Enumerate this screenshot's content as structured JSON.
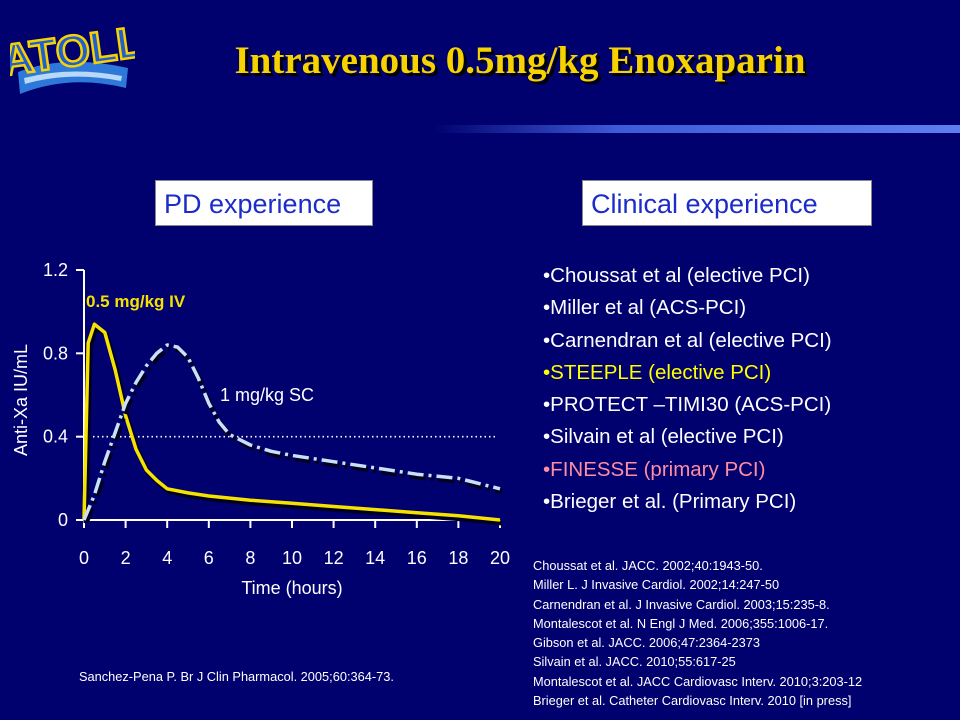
{
  "logo": {
    "text": "ATOLL"
  },
  "title": "Intravenous 0.5mg/kg Enoxaparin",
  "pd_box_label": "PD experience",
  "clinical_box_label": "Clinical experience",
  "chart_data": {
    "type": "line",
    "xlabel": "Time (hours)",
    "ylabel": "Anti-Xa IU/mL",
    "xlim": [
      0,
      20
    ],
    "ylim": [
      0,
      1.2
    ],
    "x_ticks": [
      "0",
      "2",
      "4",
      "6",
      "8",
      "10",
      "12",
      "14",
      "16",
      "18",
      "20"
    ],
    "y_ticks": [
      "0",
      "0.4",
      "0.8",
      "1.2"
    ],
    "reference_line_y": 0.4,
    "series": [
      {
        "name": "0.5 mg/kg IV",
        "color": "#f6e200",
        "style": "solid",
        "x": [
          0,
          0.2,
          0.5,
          1,
          1.5,
          2,
          2.5,
          3,
          3.5,
          4,
          5,
          6,
          8,
          10,
          12,
          14,
          16,
          18,
          20
        ],
        "y": [
          0,
          0.85,
          0.94,
          0.9,
          0.72,
          0.5,
          0.34,
          0.24,
          0.19,
          0.15,
          0.13,
          0.115,
          0.095,
          0.08,
          0.065,
          0.05,
          0.035,
          0.02,
          0.0
        ]
      },
      {
        "name": "1 mg/kg SC",
        "color": "#c8e0f8",
        "style": "dashdot",
        "x": [
          0,
          0.5,
          1,
          1.5,
          2,
          2.5,
          3,
          3.5,
          4,
          4.5,
          5,
          5.5,
          6,
          6.5,
          7,
          8,
          9,
          10,
          12,
          14,
          16,
          18,
          20
        ],
        "y": [
          0,
          0.12,
          0.28,
          0.42,
          0.56,
          0.66,
          0.74,
          0.8,
          0.84,
          0.83,
          0.78,
          0.68,
          0.56,
          0.47,
          0.41,
          0.36,
          0.33,
          0.31,
          0.28,
          0.25,
          0.22,
          0.2,
          0.15
        ]
      }
    ]
  },
  "clinical_studies": [
    {
      "text": "•Choussat et al (elective PCI)",
      "highlight": "none"
    },
    {
      "text": "•Miller et al (ACS-PCI)",
      "highlight": "none"
    },
    {
      "text": "•Carnendran et al (elective PCI)",
      "highlight": "none"
    },
    {
      "text": "•STEEPLE (elective PCI)",
      "highlight": "yellow"
    },
    {
      "text": "•PROTECT –TIMI30 (ACS-PCI)",
      "highlight": "none"
    },
    {
      "text": "•Silvain et al (elective PCI)",
      "highlight": "none"
    },
    {
      "text": "•FINESSE (primary PCI)",
      "highlight": "pink"
    },
    {
      "text": "•Brieger et al. (Primary PCI)",
      "highlight": "none"
    }
  ],
  "references": [
    "Choussat et al. JACC. 2002;40:1943-50.",
    "Miller L. J Invasive Cardiol. 2002;14:247-50",
    "Carnendran et al. J Invasive Cardiol. 2003;15:235-8.",
    "Montalescot et al. N Engl J Med. 2006;355:1006-17.",
    "Gibson et al. JACC. 2006;47:2364-2373",
    "Silvain et al. JACC. 2010;55:617-25",
    "Montalescot et al. JACC Cardiovasc Interv. 2010;3:203-12",
    "Brieger et al. Catheter Cardiovasc Interv. 2010 [in press]"
  ],
  "pd_reference": "Sanchez-Pena P. Br J Clin Pharmacol. 2005;60:364-73."
}
